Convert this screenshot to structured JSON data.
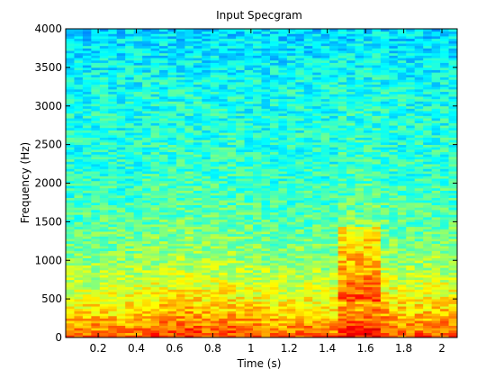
{
  "chart_data": {
    "type": "heatmap",
    "title": "Input Specgram",
    "xlabel": "Time (s)",
    "ylabel": "Frequency (Hz)",
    "xlim": [
      0.03,
      2.08
    ],
    "ylim": [
      0,
      4000
    ],
    "x_ticks": [
      0.2,
      0.4,
      0.6,
      0.8,
      1,
      1.2,
      1.4,
      1.6,
      1.8,
      2
    ],
    "x_tick_labels": [
      "0.2",
      "0.4",
      "0.6",
      "0.8",
      "1",
      "1.2",
      "1.4",
      "1.6",
      "1.8",
      "2"
    ],
    "y_ticks": [
      0,
      500,
      1000,
      1500,
      2000,
      2500,
      3000,
      3500,
      4000
    ],
    "y_tick_labels": [
      "0",
      "500",
      "1000",
      "1500",
      "2000",
      "2500",
      "3000",
      "3500",
      "4000"
    ],
    "colormap": "jet",
    "grid": false,
    "time_bins": 46,
    "freq_bins": 128,
    "frame_energy": [
      0.3,
      0.32,
      0.35,
      0.4,
      0.42,
      0.38,
      0.35,
      0.4,
      0.45,
      0.55,
      0.6,
      0.65,
      0.7,
      0.75,
      0.72,
      0.65,
      0.58,
      0.55,
      0.6,
      0.65,
      0.55,
      0.5,
      0.48,
      0.45,
      0.42,
      0.4,
      0.38,
      0.42,
      0.45,
      0.4,
      0.35,
      0.38,
      0.85,
      0.95,
      0.9,
      0.92,
      0.95,
      0.7,
      0.55,
      0.5,
      0.45,
      0.48,
      0.5,
      0.52,
      0.55,
      0.5
    ]
  }
}
